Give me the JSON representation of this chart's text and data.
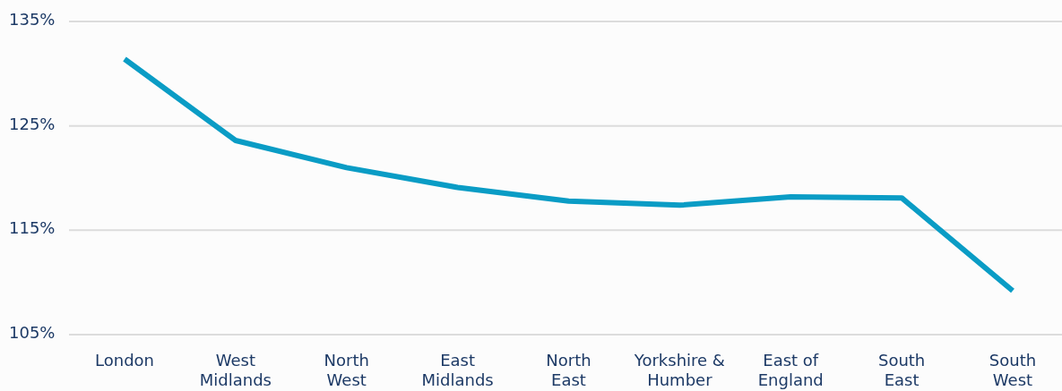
{
  "chart_data": {
    "type": "line",
    "categories": [
      "London",
      "West Midlands",
      "North West",
      "East Midlands",
      "North East",
      "Yorkshire & Humber",
      "East of England",
      "South East",
      "South West"
    ],
    "series": [
      {
        "color": "#0a9cc5",
        "values": [
          131.4,
          123.6,
          121.0,
          119.1,
          117.8,
          117.4,
          118.2,
          118.1,
          109.2
        ]
      }
    ],
    "ylim": [
      105,
      135
    ],
    "yticks": [
      {
        "value": 105,
        "label": "105%"
      },
      {
        "value": 115,
        "label": "115%"
      },
      {
        "value": 125,
        "label": "125%"
      },
      {
        "value": 135,
        "label": "135%"
      }
    ],
    "grid": "y",
    "line_style": "solid"
  }
}
